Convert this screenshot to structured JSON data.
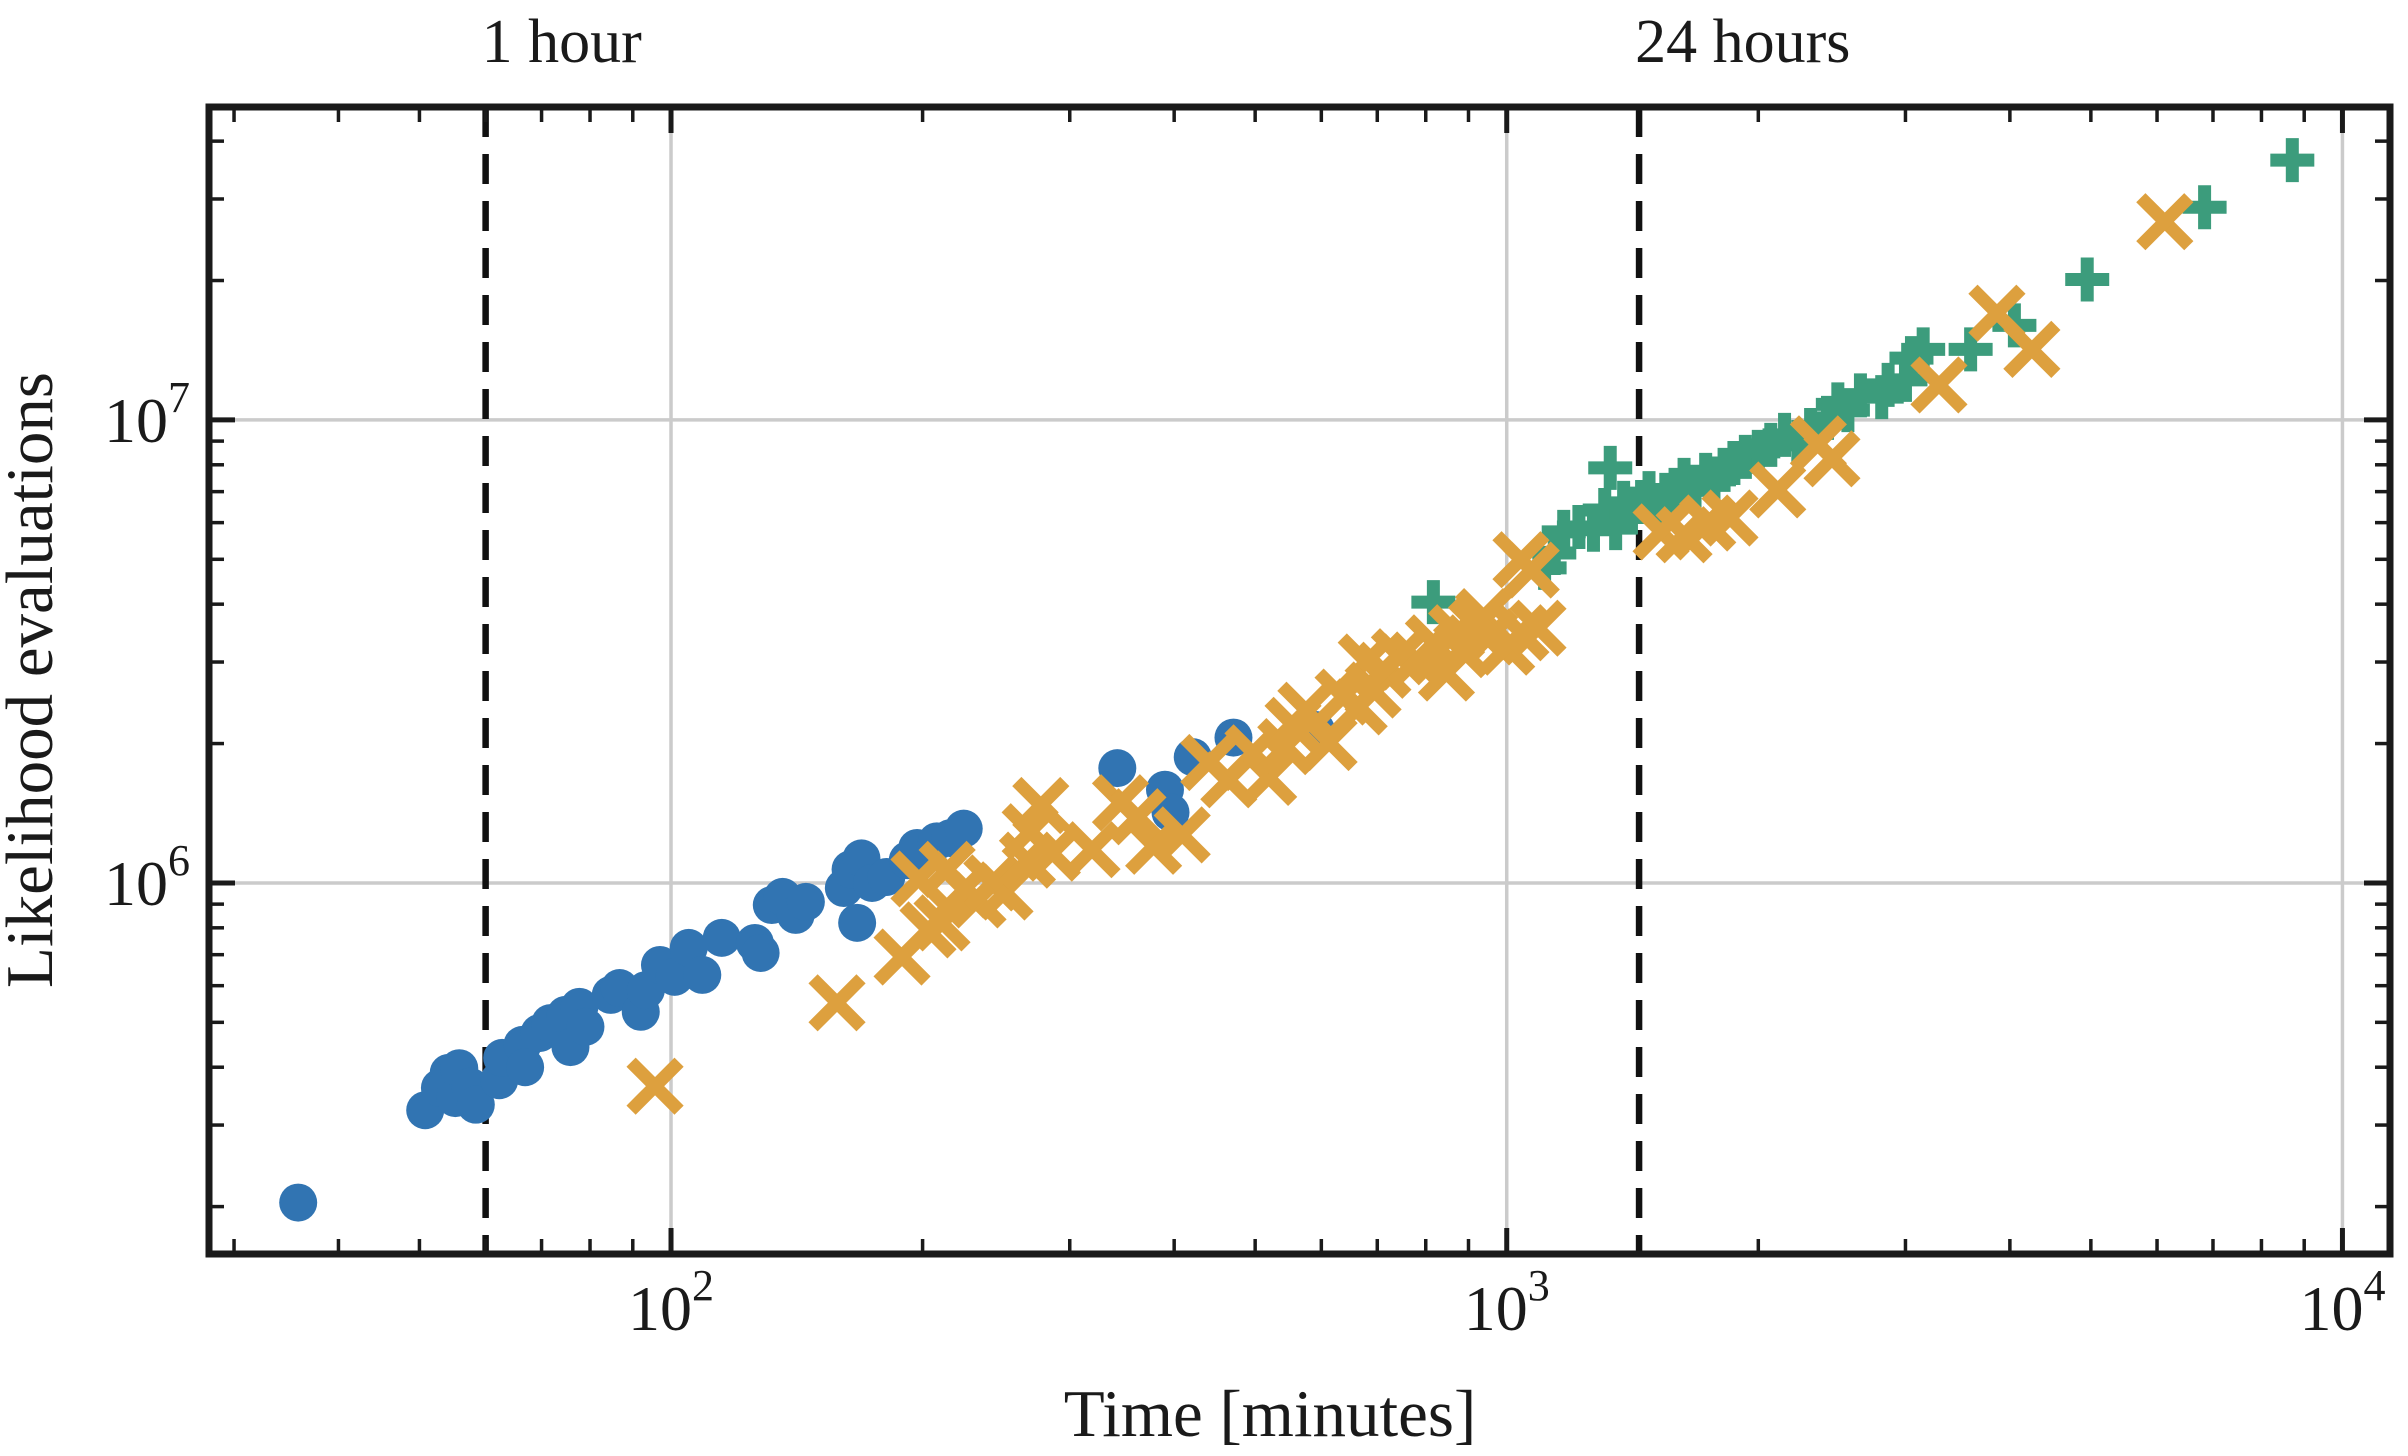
{
  "figure": {
    "background": "#ffffff",
    "grid_color": "#cbcbcb",
    "spine_color": "#1a1a1a",
    "dashed_line_color": "#111111"
  },
  "chart_data": {
    "type": "scatter",
    "title": "",
    "xlabel": "Time [minutes]",
    "ylabel": "Likelihood evaluations",
    "x_scale": "log",
    "y_scale": "log",
    "xlim": [
      28,
      11400
    ],
    "ylim": [
      158000,
      47400000
    ],
    "x_major_ticks": [
      100,
      1000,
      10000
    ],
    "x_tick_labels": [
      "10^2",
      "10^3",
      "10^4"
    ],
    "y_major_ticks": [
      1000000,
      10000000
    ],
    "y_tick_labels": [
      "10^6",
      "10^7"
    ],
    "grid": "major decade gridlines only, light gray",
    "legend": "none",
    "vlines": [
      {
        "label": "1 hour",
        "x": 60
      },
      {
        "label": "24 hours",
        "x": 1440
      }
    ],
    "series": [
      {
        "name": "blue-circles",
        "marker": "circle",
        "color": "#3174B2",
        "points": [
          [
            35.8,
            204000
          ],
          [
            50.8,
            323000
          ],
          [
            52.9,
            361000
          ],
          [
            54.2,
            389000
          ],
          [
            55.2,
            343000
          ],
          [
            55.8,
            398000
          ],
          [
            57.5,
            363000
          ],
          [
            58.4,
            332000
          ],
          [
            62.3,
            375000
          ],
          [
            62.8,
            419000
          ],
          [
            66.4,
            447000
          ],
          [
            66.9,
            400000
          ],
          [
            69.6,
            474000
          ],
          [
            71.7,
            498000
          ],
          [
            74.8,
            519000
          ],
          [
            75.8,
            442000
          ],
          [
            77.7,
            540000
          ],
          [
            79,
            489000
          ],
          [
            84.7,
            573000
          ],
          [
            86.8,
            593000
          ],
          [
            92,
            527000
          ],
          [
            93.3,
            587000
          ],
          [
            97,
            665000
          ],
          [
            101,
            627000
          ],
          [
            105,
            724000
          ],
          [
            109,
            633000
          ],
          [
            115,
            761000
          ],
          [
            126,
            742000
          ],
          [
            128,
            706000
          ],
          [
            132,
            896000
          ],
          [
            136,
            933000
          ],
          [
            141,
            853000
          ],
          [
            145,
            910000
          ],
          [
            161,
            975000
          ],
          [
            164,
            1070000
          ],
          [
            167,
            820000
          ],
          [
            169,
            1130000
          ],
          [
            174,
            1000000
          ],
          [
            181,
            1030000
          ],
          [
            192,
            1120000
          ],
          [
            197,
            1190000
          ],
          [
            208,
            1230000
          ],
          [
            216,
            1250000
          ],
          [
            224,
            1310000
          ],
          [
            342,
            1770000
          ],
          [
            390,
            1590000
          ],
          [
            396,
            1420000
          ],
          [
            421,
            1870000
          ],
          [
            471,
            2060000
          ],
          [
            591,
            2140000
          ]
        ]
      },
      {
        "name": "green-plus",
        "marker": "plus",
        "color": "#3C9C7C",
        "points": [
          [
            817,
            4040000
          ],
          [
            1110,
            4790000
          ],
          [
            1140,
            5160000
          ],
          [
            1170,
            5730000
          ],
          [
            1220,
            5870000
          ],
          [
            1270,
            5790000
          ],
          [
            1310,
            6390000
          ],
          [
            1330,
            7880000
          ],
          [
            1350,
            5840000
          ],
          [
            1380,
            6620000
          ],
          [
            1410,
            6330000
          ],
          [
            1450,
            6650000
          ],
          [
            1480,
            6950000
          ],
          [
            1510,
            6550000
          ],
          [
            1550,
            6890000
          ],
          [
            1590,
            7060000
          ],
          [
            1630,
            7420000
          ],
          [
            1680,
            7170000
          ],
          [
            1730,
            7610000
          ],
          [
            1770,
            7420000
          ],
          [
            1820,
            7800000
          ],
          [
            1870,
            8070000
          ],
          [
            1930,
            8320000
          ],
          [
            2000,
            8530000
          ],
          [
            2070,
            8830000
          ],
          [
            2150,
            9280000
          ],
          [
            2230,
            8960000
          ],
          [
            2310,
            9510000
          ],
          [
            2420,
            10100000
          ],
          [
            2490,
            10800000
          ],
          [
            2560,
            10500000
          ],
          [
            2650,
            11300000
          ],
          [
            2810,
            11200000
          ],
          [
            2860,
            11900000
          ],
          [
            3000,
            12200000
          ],
          [
            3050,
            13600000
          ],
          [
            3150,
            14200000
          ],
          [
            3590,
            14200000
          ],
          [
            4050,
            16000000
          ],
          [
            4950,
            20100000
          ],
          [
            6840,
            28800000
          ],
          [
            8710,
            36400000
          ]
        ]
      },
      {
        "name": "orange-x",
        "marker": "x",
        "color": "#DDA03E",
        "points": [
          [
            95.7,
            364000
          ],
          [
            158,
            551000
          ],
          [
            189,
            692000
          ],
          [
            203,
            792000
          ],
          [
            211,
            820000
          ],
          [
            198,
            1020000
          ],
          [
            214,
            1070000
          ],
          [
            224,
            966000
          ],
          [
            233,
            919000
          ],
          [
            242,
            1000000
          ],
          [
            251,
            956000
          ],
          [
            267,
            1120000
          ],
          [
            269,
            1290000
          ],
          [
            277,
            1470000
          ],
          [
            286,
            1160000
          ],
          [
            319,
            1180000
          ],
          [
            345,
            1490000
          ],
          [
            362,
            1390000
          ],
          [
            378,
            1200000
          ],
          [
            409,
            1270000
          ],
          [
            440,
            1820000
          ],
          [
            465,
            1670000
          ],
          [
            497,
            1910000
          ],
          [
            519,
            1690000
          ],
          [
            544,
            1970000
          ],
          [
            555,
            2190000
          ],
          [
            575,
            2360000
          ],
          [
            613,
            2010000
          ],
          [
            637,
            2520000
          ],
          [
            666,
            2400000
          ],
          [
            679,
            3000000
          ],
          [
            692,
            2610000
          ],
          [
            711,
            2880000
          ],
          [
            744,
            3080000
          ],
          [
            780,
            3030000
          ],
          [
            817,
            3300000
          ],
          [
            847,
            2840000
          ],
          [
            871,
            3470000
          ],
          [
            883,
            3190000
          ],
          [
            920,
            3570000
          ],
          [
            938,
            3760000
          ],
          [
            954,
            3400000
          ],
          [
            1000,
            3230000
          ],
          [
            1040,
            3470000
          ],
          [
            1090,
            3550000
          ],
          [
            1040,
            4990000
          ],
          [
            1070,
            4740000
          ],
          [
            1530,
            5730000
          ],
          [
            1630,
            5650000
          ],
          [
            1740,
            5990000
          ],
          [
            1850,
            6140000
          ],
          [
            2110,
            7060000
          ],
          [
            2360,
            8880000
          ],
          [
            2450,
            8240000
          ],
          [
            3290,
            11900000
          ],
          [
            3860,
            17000000
          ],
          [
            4250,
            14200000
          ],
          [
            6130,
            26800000
          ]
        ]
      }
    ]
  }
}
